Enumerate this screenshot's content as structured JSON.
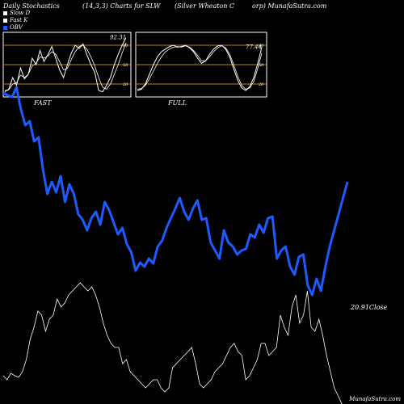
{
  "header": {
    "left": "Daily Stochastics",
    "params": "(14,3,3) Charts for SLW",
    "company": "(Silver Wheaton  C",
    "site": "orp) MunafaSutra.com"
  },
  "legend": [
    {
      "label": "Slow  D",
      "color": "#ffffff"
    },
    {
      "label": "Fast K",
      "color": "#ffffff"
    },
    {
      "label": "OBV",
      "color": "#1e5bff"
    }
  ],
  "footer": "MunafaSutra.com",
  "chart_data": [
    {
      "type": "line",
      "panel": "FAST",
      "ylim": [
        0,
        100
      ],
      "levels": [
        20,
        50,
        80
      ],
      "level_labels": [
        "80",
        "50",
        "20"
      ],
      "last_value_label": "92.31",
      "series": [
        {
          "role": "fast-k",
          "values": [
            8,
            12,
            30,
            18,
            45,
            28,
            35,
            60,
            50,
            72,
            55,
            65,
            78,
            60,
            42,
            30,
            50,
            68,
            80,
            75,
            82,
            65,
            50,
            38,
            10,
            8,
            18,
            30,
            50,
            66,
            80,
            92
          ]
        },
        {
          "role": "slow-d",
          "values": [
            10,
            11,
            20,
            22,
            34,
            30,
            35,
            48,
            52,
            62,
            60,
            63,
            70,
            66,
            55,
            42,
            44,
            58,
            70,
            78,
            80,
            74,
            62,
            48,
            30,
            15,
            12,
            20,
            35,
            50,
            68,
            84
          ]
        }
      ]
    },
    {
      "type": "line",
      "panel": "FULL",
      "ylim": [
        0,
        100
      ],
      "levels": [
        20,
        50,
        80
      ],
      "level_labels": [
        "80",
        "50",
        "20"
      ],
      "last_value_label": "77.44",
      "series": [
        {
          "role": "full-k",
          "values": [
            10,
            12,
            20,
            35,
            50,
            62,
            70,
            74,
            78,
            80,
            77,
            78,
            80,
            76,
            70,
            60,
            52,
            56,
            66,
            74,
            79,
            80,
            74,
            62,
            44,
            26,
            14,
            10,
            16,
            30,
            52,
            77
          ]
        },
        {
          "role": "full-d",
          "values": [
            12,
            13,
            18,
            28,
            40,
            52,
            62,
            70,
            74,
            77,
            78,
            77,
            79,
            77,
            72,
            64,
            56,
            56,
            62,
            70,
            76,
            79,
            76,
            66,
            50,
            32,
            18,
            12,
            14,
            24,
            44,
            68
          ]
        }
      ]
    },
    {
      "type": "line",
      "panel": "main",
      "labels": [
        "FAST",
        "FULL"
      ],
      "obv": [
        115,
        118,
        120,
        108,
        135,
        155,
        150,
        175,
        170,
        210,
        240,
        225,
        238,
        218,
        250,
        228,
        240,
        265,
        272,
        285,
        270,
        262,
        278,
        250,
        260,
        275,
        290,
        282,
        302,
        312,
        335,
        325,
        330,
        320,
        326,
        305,
        298,
        282,
        270,
        258,
        245,
        262,
        272,
        258,
        248,
        272,
        270,
        300,
        310,
        320,
        285,
        300,
        305,
        315,
        310,
        308,
        290,
        294,
        278,
        288,
        270,
        268,
        320,
        310,
        305,
        330,
        340,
        318,
        315,
        353,
        365,
        345,
        360,
        330,
        305,
        285,
        265,
        245,
        225
      ],
      "price": [
        355,
        350,
        358,
        355,
        353,
        360,
        375,
        400,
        415,
        435,
        430,
        410,
        425,
        430,
        450,
        440,
        445,
        455,
        460,
        465,
        470,
        465,
        460,
        465,
        455,
        440,
        420,
        405,
        395,
        390,
        390,
        370,
        375,
        360,
        355,
        350,
        345,
        340,
        345,
        350,
        350,
        340,
        335,
        340,
        365,
        370,
        375,
        380,
        385,
        390,
        370,
        345,
        340,
        345,
        350,
        360,
        365,
        370,
        380,
        390,
        395,
        385,
        380,
        350,
        355,
        365,
        375,
        395,
        395,
        380,
        385,
        390,
        430,
        415,
        405,
        440,
        455,
        420,
        430,
        460,
        415,
        410,
        425,
        405,
        380,
        360,
        340,
        330,
        320,
        300
      ]
    }
  ],
  "close_label": "20.91Close"
}
